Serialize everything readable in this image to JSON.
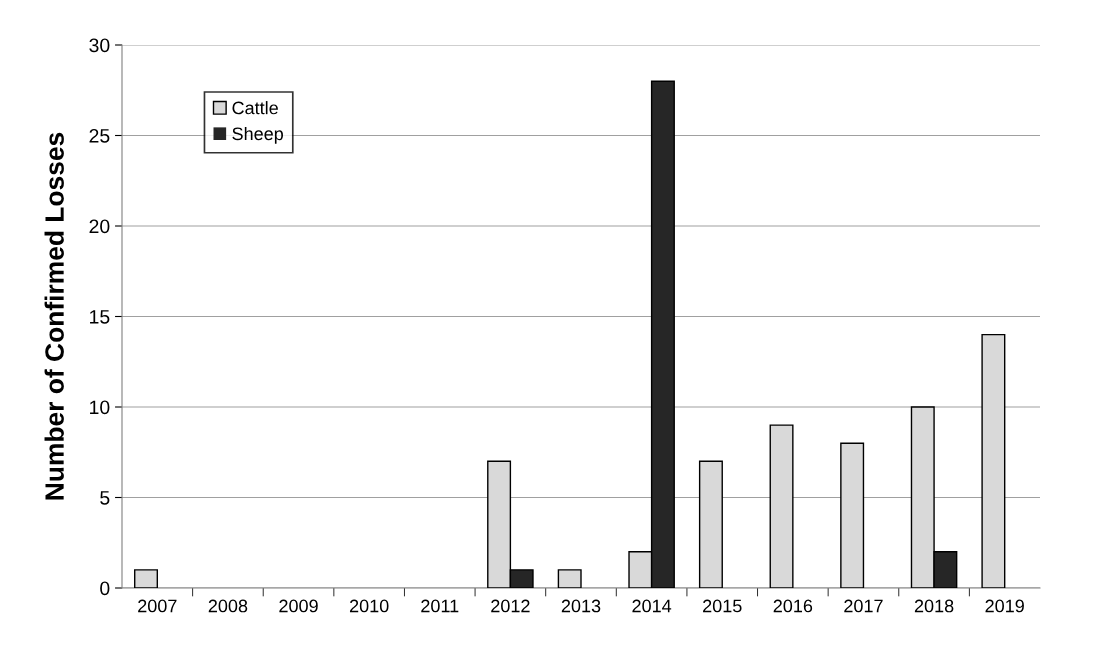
{
  "chart_data": {
    "type": "bar",
    "ylabel": "Number of Confirmed Losses",
    "categories": [
      "2007",
      "2008",
      "2009",
      "2010",
      "2011",
      "2012",
      "2013",
      "2014",
      "2015",
      "2016",
      "2017",
      "2018",
      "2019"
    ],
    "series": [
      {
        "name": "Cattle",
        "color": "#d9d9d9",
        "values": [
          1,
          0,
          0,
          0,
          0,
          7,
          1,
          2,
          7,
          9,
          8,
          10,
          14
        ]
      },
      {
        "name": "Sheep",
        "color": "#262626",
        "values": [
          0,
          0,
          0,
          0,
          0,
          1,
          0,
          28,
          0,
          0,
          0,
          2,
          0
        ]
      }
    ],
    "ylim": [
      0,
      30
    ],
    "yticks": [
      0,
      5,
      10,
      15,
      20,
      25,
      30
    ],
    "grid": "y",
    "legend": "top left"
  }
}
